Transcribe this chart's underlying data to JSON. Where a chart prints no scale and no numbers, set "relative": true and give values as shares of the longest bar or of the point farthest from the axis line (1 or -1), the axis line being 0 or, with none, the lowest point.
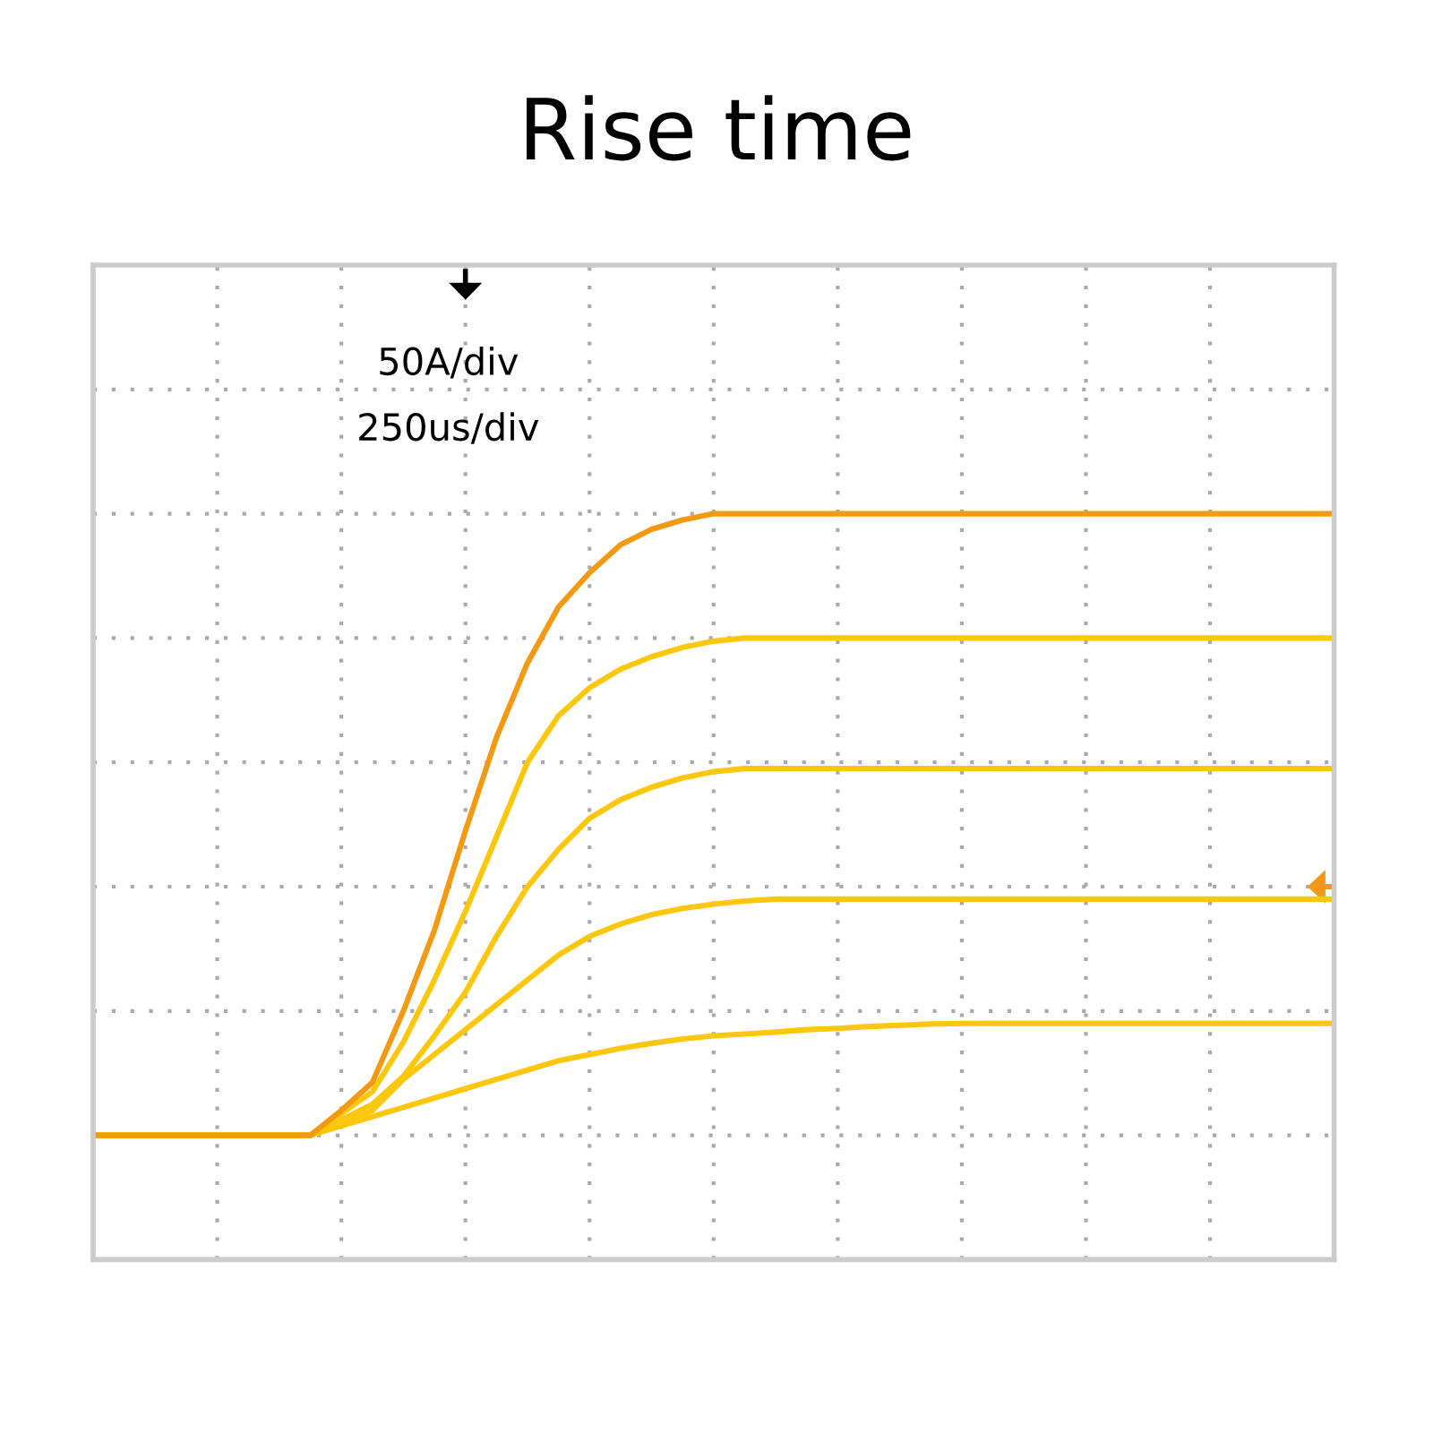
{
  "chart_data": {
    "type": "line",
    "title": "Rise time",
    "relative": true,
    "grid": true,
    "marker": "none",
    "line_style": "solid",
    "annotations": [
      "50A/div",
      "250us/div"
    ],
    "categories": [
      null,
      null,
      null,
      null,
      null,
      null,
      null,
      null,
      null,
      null,
      null,
      null,
      null,
      null,
      null,
      null,
      null,
      null,
      null,
      null,
      null,
      null,
      null,
      null,
      null,
      null,
      null,
      null,
      null,
      null,
      null,
      null,
      null,
      null,
      null,
      null,
      null,
      null,
      null,
      null,
      null
    ],
    "series": [
      {
        "color": "#f39a12",
        "values": [
          0,
          0,
          0,
          0,
          0,
          0,
          0,
          0,
          0.04,
          0.085,
          0.2,
          0.33,
          0.49,
          0.64,
          0.76,
          0.85,
          0.905,
          0.95,
          0.975,
          0.99,
          1.0,
          1.0,
          1.0,
          1.0,
          1.0,
          1.0,
          1.0,
          1.0,
          1.0,
          1.0,
          1.0,
          1.0,
          1.0,
          1.0,
          1.0,
          1.0,
          1.0,
          1.0,
          1.0,
          1.0,
          1.0
        ]
      },
      {
        "color": "#fcc70c",
        "values": [
          0,
          0,
          0,
          0,
          0,
          0,
          0,
          0,
          0.035,
          0.07,
          0.15,
          0.25,
          0.36,
          0.48,
          0.6,
          0.675,
          0.72,
          0.75,
          0.77,
          0.785,
          0.795,
          0.8,
          0.8,
          0.8,
          0.8,
          0.8,
          0.8,
          0.8,
          0.8,
          0.8,
          0.8,
          0.8,
          0.8,
          0.8,
          0.8,
          0.8,
          0.8,
          0.8,
          0.8,
          0.8,
          0.8
        ]
      },
      {
        "color": "#fcc70c",
        "values": [
          0,
          0,
          0,
          0,
          0,
          0,
          0,
          0,
          0.025,
          0.05,
          0.095,
          0.16,
          0.23,
          0.32,
          0.4,
          0.46,
          0.51,
          0.54,
          0.56,
          0.575,
          0.585,
          0.59,
          0.59,
          0.59,
          0.59,
          0.59,
          0.59,
          0.59,
          0.59,
          0.59,
          0.59,
          0.59,
          0.59,
          0.59,
          0.59,
          0.59,
          0.59,
          0.59,
          0.59,
          0.59,
          0.59
        ]
      },
      {
        "color": "#fcc70c",
        "values": [
          0,
          0,
          0,
          0,
          0,
          0,
          0,
          0,
          0.02,
          0.04,
          0.09,
          0.13,
          0.17,
          0.21,
          0.25,
          0.29,
          0.32,
          0.34,
          0.355,
          0.365,
          0.372,
          0.377,
          0.38,
          0.38,
          0.38,
          0.38,
          0.38,
          0.38,
          0.38,
          0.38,
          0.38,
          0.38,
          0.38,
          0.38,
          0.38,
          0.38,
          0.38,
          0.38,
          0.38,
          0.38,
          0.38
        ]
      },
      {
        "color": "#fcc70c",
        "values": [
          0,
          0,
          0,
          0,
          0,
          0,
          0,
          0,
          0.015,
          0.03,
          0.045,
          0.06,
          0.075,
          0.09,
          0.105,
          0.12,
          0.13,
          0.14,
          0.148,
          0.155,
          0.16,
          0.163,
          0.166,
          0.17,
          0.172,
          0.175,
          0.177,
          0.179,
          0.18,
          0.18,
          0.18,
          0.18,
          0.18,
          0.18,
          0.18,
          0.18,
          0.18,
          0.18,
          0.18,
          0.18,
          0.18
        ]
      }
    ]
  }
}
